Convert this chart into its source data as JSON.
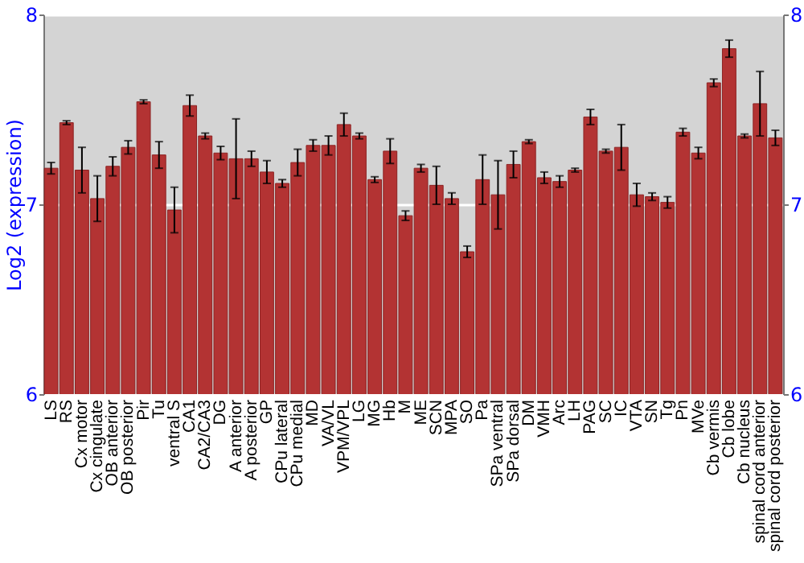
{
  "chart_data": {
    "type": "bar",
    "ylabel": "Log2 (expression)",
    "categories": [
      "LS",
      "RS",
      "Cx motor",
      "Cx cingulate",
      "OB anterior",
      "OB posterior",
      "Pir",
      "Tu",
      "ventral S",
      "CA1",
      "CA2/CA3",
      "DG",
      "A anterior",
      "A posterior",
      "GP",
      "CPu lateral",
      "CPu medial",
      "MD",
      "VA/VL",
      "VPM/VPL",
      "LG",
      "MG",
      "Hb",
      "M",
      "ME",
      "SCN",
      "MPA",
      "SO",
      "Pa",
      "SPa ventral",
      "SPa dorsal",
      "DM",
      "VMH",
      "Arc",
      "LH",
      "PAG",
      "SC",
      "IC",
      "VTA",
      "SN",
      "Tg",
      "Pn",
      "MVe",
      "Cb vermis",
      "Cb lobe",
      "Cb nucleus",
      "spinal cord anterior",
      "spinal cord posterior"
    ],
    "values": [
      7.19,
      7.43,
      7.18,
      7.03,
      7.2,
      7.3,
      7.54,
      7.26,
      6.97,
      7.52,
      7.36,
      7.27,
      7.24,
      7.24,
      7.17,
      7.11,
      7.22,
      7.31,
      7.31,
      7.42,
      7.36,
      7.13,
      7.28,
      6.94,
      7.19,
      7.1,
      7.03,
      6.75,
      7.13,
      7.05,
      7.21,
      7.33,
      7.14,
      7.12,
      7.18,
      7.46,
      7.28,
      7.3,
      7.05,
      7.04,
      7.01,
      7.38,
      7.27,
      7.64,
      7.82,
      7.36,
      7.53,
      7.35
    ],
    "errors": [
      0.03,
      0.01,
      0.12,
      0.12,
      0.05,
      0.035,
      0.01,
      0.07,
      0.12,
      0.055,
      0.015,
      0.035,
      0.21,
      0.04,
      0.06,
      0.02,
      0.07,
      0.03,
      0.05,
      0.06,
      0.015,
      0.015,
      0.065,
      0.025,
      0.02,
      0.1,
      0.03,
      0.03,
      0.13,
      0.18,
      0.07,
      0.01,
      0.03,
      0.03,
      0.01,
      0.04,
      0.01,
      0.12,
      0.06,
      0.02,
      0.03,
      0.02,
      0.03,
      0.02,
      0.045,
      0.01,
      0.17,
      0.04
    ],
    "color": "#b33333",
    "ylim": [
      6,
      8
    ],
    "yticks": [
      6,
      7,
      8
    ],
    "y2lim": [
      6,
      8
    ],
    "y2ticks": [
      6,
      7,
      8
    ],
    "grid": "y"
  }
}
